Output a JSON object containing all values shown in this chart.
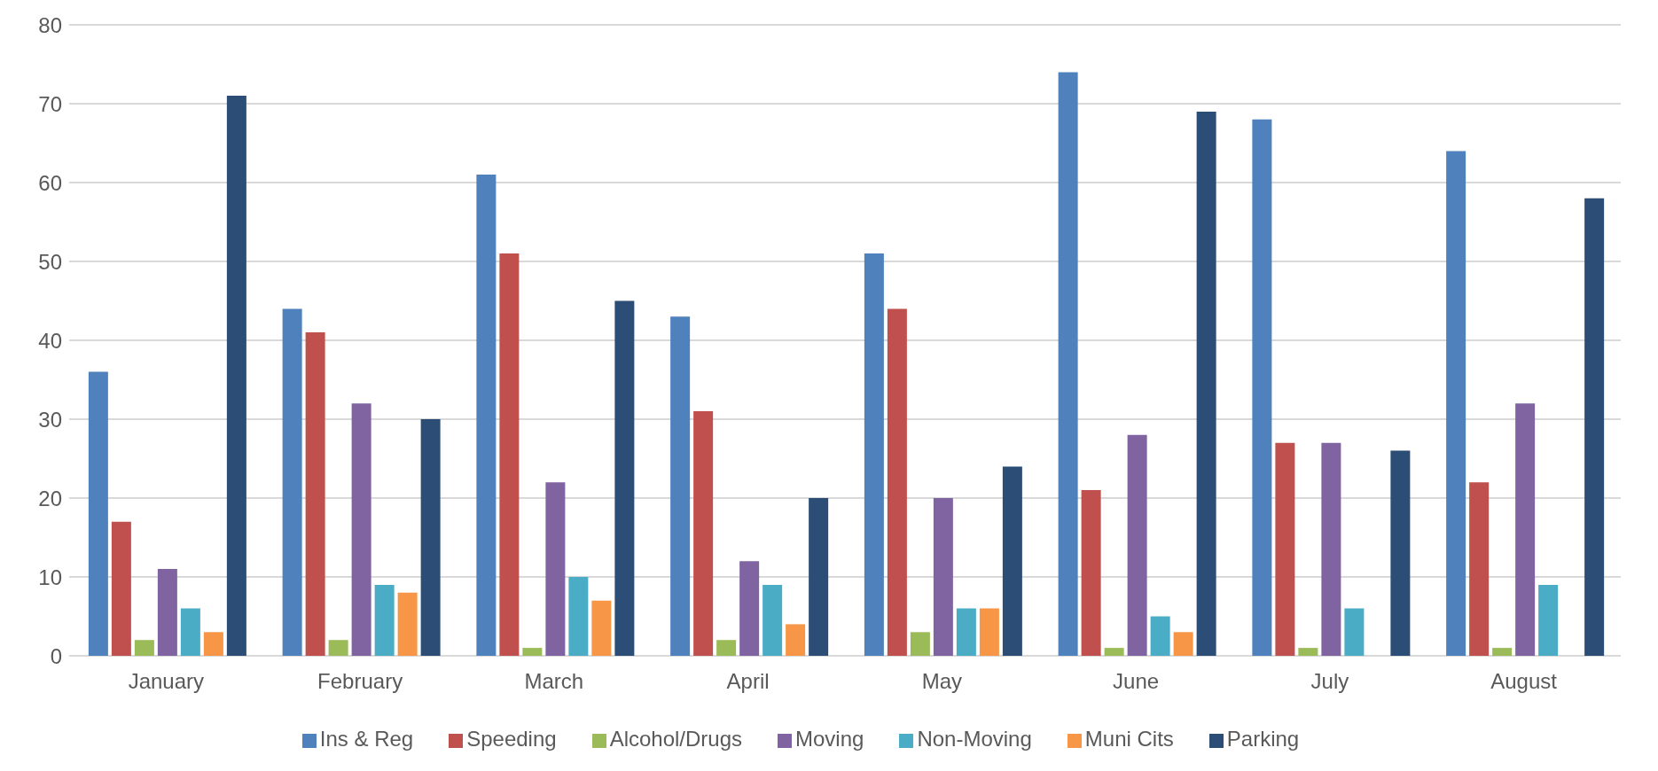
{
  "chart_data": {
    "type": "bar",
    "categories": [
      "January",
      "February",
      "March",
      "April",
      "May",
      "June",
      "July",
      "August"
    ],
    "series": [
      {
        "name": "Ins & Reg",
        "color": "#4f81bd",
        "values": [
          36,
          44,
          61,
          43,
          51,
          74,
          68,
          64
        ]
      },
      {
        "name": "Speeding",
        "color": "#c0504d",
        "values": [
          17,
          41,
          51,
          31,
          44,
          21,
          27,
          22
        ]
      },
      {
        "name": "Alcohol/Drugs",
        "color": "#9bbb59",
        "values": [
          2,
          2,
          1,
          2,
          3,
          1,
          1,
          1
        ]
      },
      {
        "name": "Moving",
        "color": "#8064a2",
        "values": [
          11,
          32,
          22,
          12,
          20,
          28,
          27,
          32
        ]
      },
      {
        "name": "Non-Moving",
        "color": "#4bacc6",
        "values": [
          6,
          9,
          10,
          9,
          6,
          5,
          6,
          9
        ]
      },
      {
        "name": "Muni Cits",
        "color": "#f79646",
        "values": [
          3,
          8,
          7,
          4,
          6,
          3,
          0,
          0
        ]
      },
      {
        "name": "Parking",
        "color": "#2c4d75",
        "values": [
          71,
          30,
          45,
          20,
          24,
          69,
          26,
          58
        ]
      }
    ],
    "ylim": [
      0,
      80
    ],
    "yticks": [
      0,
      10,
      20,
      30,
      40,
      50,
      60,
      70,
      80
    ],
    "grid": "y",
    "legend": "bottom"
  }
}
